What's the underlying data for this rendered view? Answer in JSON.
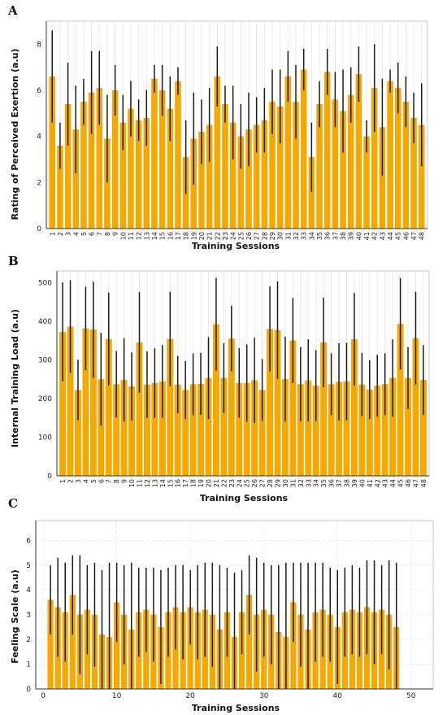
{
  "colors": {
    "bar": "#F5A800",
    "error_bar": "#1a1a1a"
  },
  "chart_data": [
    {
      "panel": "A",
      "type": "bar",
      "xlabel": "Training Sessions",
      "ylabel": "Rating of Perceived Exertion (a.u)",
      "ylim": [
        0,
        9
      ],
      "yticks": [
        0,
        2,
        4,
        6,
        8
      ],
      "categories": [
        "1",
        "2",
        "3",
        "4",
        "5",
        "6",
        "7",
        "8",
        "9",
        "10",
        "11",
        "12",
        "13",
        "14",
        "15",
        "16",
        "17",
        "18",
        "19",
        "20",
        "21",
        "22",
        "23",
        "24",
        "25",
        "26",
        "27",
        "28",
        "29",
        "30",
        "31",
        "32",
        "33",
        "34",
        "35",
        "36",
        "37",
        "38",
        "39",
        "40",
        "41",
        "42",
        "43",
        "44",
        "45",
        "46",
        "47",
        "48"
      ],
      "values": [
        6.6,
        3.6,
        5.4,
        4.3,
        5.5,
        5.9,
        6.1,
        3.9,
        6.0,
        4.6,
        5.2,
        4.7,
        4.8,
        6.5,
        6.0,
        5.2,
        6.4,
        3.1,
        3.9,
        4.2,
        4.5,
        6.6,
        5.4,
        4.6,
        4.0,
        4.3,
        4.5,
        4.7,
        5.5,
        5.3,
        6.6,
        5.5,
        6.9,
        3.1,
        5.4,
        6.8,
        5.6,
        5.1,
        5.8,
        6.7,
        4.0,
        6.1,
        4.4,
        6.4,
        6.1,
        5.5,
        4.8,
        4.5
      ],
      "errors": [
        2.0,
        1.0,
        1.8,
        1.9,
        1.0,
        1.8,
        1.6,
        1.9,
        1.1,
        1.2,
        1.2,
        0.9,
        1.2,
        0.6,
        1.1,
        1.4,
        0.6,
        1.6,
        2.0,
        1.4,
        1.6,
        1.3,
        0.8,
        1.6,
        1.4,
        1.6,
        1.2,
        1.4,
        1.4,
        1.6,
        1.1,
        1.6,
        0.9,
        1.5,
        1.0,
        1.0,
        1.2,
        1.8,
        1.2,
        1.2,
        0.7,
        1.9,
        2.1,
        0.5,
        1.1,
        1.1,
        1.1,
        1.8
      ],
      "grid": "x",
      "legend": "none"
    },
    {
      "panel": "B",
      "type": "bar",
      "xlabel": "Training Sessions",
      "ylabel": "Internal Training Load (a.u)",
      "ylim": [
        0,
        530
      ],
      "yticks": [
        0,
        100,
        200,
        300,
        400,
        500
      ],
      "categories": [
        "1",
        "2",
        "3",
        "4",
        "5",
        "6",
        "7",
        "8",
        "9",
        "10",
        "11",
        "12",
        "13",
        "14",
        "15",
        "16",
        "17",
        "18",
        "19",
        "20",
        "21",
        "22",
        "23",
        "24",
        "25",
        "26",
        "27",
        "28",
        "29",
        "30",
        "31",
        "32",
        "33",
        "34",
        "35",
        "36",
        "37",
        "38",
        "39",
        "40",
        "41",
        "42",
        "43",
        "44",
        "45",
        "46",
        "47",
        "48"
      ],
      "values": [
        372,
        386,
        222,
        381,
        378,
        250,
        354,
        237,
        248,
        231,
        345,
        236,
        240,
        244,
        354,
        236,
        222,
        237,
        238,
        253,
        392,
        253,
        355,
        240,
        240,
        247,
        222,
        380,
        377,
        250,
        350,
        237,
        247,
        233,
        345,
        237,
        243,
        244,
        353,
        236,
        223,
        233,
        237,
        253,
        393,
        253,
        356,
        248
      ],
      "errors": [
        128,
        120,
        78,
        108,
        124,
        120,
        120,
        86,
        108,
        88,
        130,
        86,
        90,
        94,
        122,
        74,
        75,
        80,
        80,
        106,
        120,
        90,
        85,
        90,
        100,
        110,
        80,
        110,
        126,
        110,
        110,
        96,
        106,
        92,
        116,
        80,
        100,
        100,
        120,
        82,
        76,
        80,
        80,
        100,
        118,
        80,
        120,
        90
      ],
      "grid": "x",
      "legend": "none"
    },
    {
      "panel": "C",
      "type": "bar",
      "xlabel": "Training Sessions",
      "ylabel": "Feeling Scale (a.u)",
      "ylim": [
        0,
        6.8
      ],
      "yticks": [
        0,
        1,
        2,
        3,
        4,
        5,
        6
      ],
      "xlim": [
        -1,
        53
      ],
      "xticks": [
        0,
        10,
        20,
        30,
        40,
        50
      ],
      "x": [
        1,
        2,
        3,
        4,
        5,
        6,
        7,
        8,
        9,
        10,
        11,
        12,
        13,
        14,
        15,
        16,
        17,
        18,
        19,
        20,
        21,
        22,
        23,
        24,
        25,
        26,
        27,
        28,
        29,
        30,
        31,
        32,
        33,
        34,
        35,
        36,
        37,
        38,
        39,
        40,
        41,
        42,
        43,
        44,
        45,
        46,
        47,
        48
      ],
      "values": [
        3.6,
        3.3,
        3.1,
        3.8,
        3.0,
        3.2,
        3.0,
        2.2,
        2.1,
        3.5,
        3.0,
        2.4,
        3.1,
        3.2,
        3.0,
        2.5,
        3.1,
        3.3,
        3.1,
        3.3,
        3.1,
        3.2,
        3.0,
        2.4,
        3.1,
        2.1,
        3.1,
        3.8,
        3.0,
        3.2,
        3.0,
        2.3,
        2.1,
        3.5,
        3.0,
        2.4,
        3.1,
        3.2,
        3.0,
        2.5,
        3.1,
        3.2,
        3.1,
        3.3,
        3.1,
        3.2,
        3.0,
        2.5
      ],
      "errors": [
        1.4,
        2.0,
        2.0,
        1.6,
        2.4,
        1.8,
        2.1,
        2.6,
        3.0,
        1.6,
        2.0,
        2.7,
        1.8,
        1.7,
        1.9,
        2.3,
        1.8,
        1.7,
        1.9,
        1.5,
        1.9,
        1.9,
        2.1,
        2.6,
        1.8,
        2.6,
        1.7,
        1.6,
        2.3,
        1.9,
        2.0,
        2.7,
        3.0,
        1.6,
        2.1,
        2.7,
        2.0,
        1.9,
        1.9,
        2.3,
        1.8,
        1.8,
        1.8,
        1.9,
        2.1,
        1.8,
        2.2,
        2.6
      ],
      "grid": "both",
      "legend": "none"
    }
  ]
}
